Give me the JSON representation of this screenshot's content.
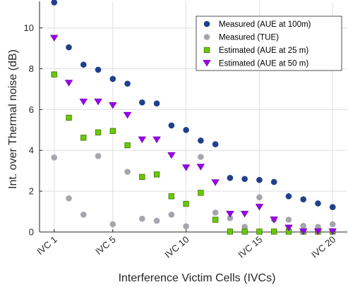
{
  "chart_data": {
    "type": "scatter",
    "xlabel": "Interference Victim Cells (IVCs)",
    "ylabel": "Int. over Thermal noise (dB)",
    "xlim": [
      0,
      21
    ],
    "ylim": [
      0,
      11.3
    ],
    "grid": true,
    "legend_position": "top-right",
    "x_ticks": [
      {
        "x": 1,
        "label": "IVC 1"
      },
      {
        "x": 5,
        "label": "IVC 5"
      },
      {
        "x": 10,
        "label": "IVC 10"
      },
      {
        "x": 15,
        "label": "IVC 15"
      },
      {
        "x": 20,
        "label": "IVC 20"
      }
    ],
    "y_ticks": [
      0,
      2,
      4,
      6,
      8,
      10
    ],
    "series": [
      {
        "name": "Measured (AUE at 100m)",
        "marker": "circle",
        "color": "#1f3f8f",
        "x": [
          1,
          2,
          3,
          4,
          5,
          6,
          7,
          8,
          9,
          10,
          11,
          12,
          13,
          14,
          15,
          16,
          17,
          18,
          19,
          20
        ],
        "y": [
          11.25,
          9.05,
          8.2,
          7.95,
          7.5,
          7.27,
          6.35,
          6.3,
          5.22,
          5.0,
          4.48,
          4.3,
          2.65,
          2.6,
          2.55,
          2.45,
          1.75,
          1.6,
          1.4,
          1.22
        ]
      },
      {
        "name": "Measured (TUE)",
        "marker": "circle",
        "color": "#a3a6ad",
        "x": [
          1,
          2,
          3,
          4,
          5,
          6,
          7,
          8,
          9,
          10,
          11,
          12,
          13,
          14,
          15,
          16,
          17,
          18,
          19,
          20
        ],
        "y": [
          3.65,
          1.65,
          0.85,
          3.72,
          0.38,
          2.95,
          0.65,
          0.55,
          0.85,
          0.28,
          3.68,
          0.95,
          0.68,
          0.25,
          1.7,
          0.6,
          0.6,
          0.3,
          0.25,
          0.38
        ]
      },
      {
        "name": "Estimated (AUE at 25 m)",
        "marker": "square",
        "color": "#66cc00",
        "x": [
          1,
          2,
          3,
          4,
          5,
          6,
          7,
          8,
          9,
          10,
          11,
          12,
          13,
          14,
          15,
          16,
          17,
          18,
          19,
          20
        ],
        "y": [
          7.72,
          5.6,
          4.62,
          4.88,
          4.95,
          4.25,
          2.7,
          2.82,
          1.75,
          1.38,
          1.92,
          0.6,
          0.02,
          0.02,
          0.02,
          0.02,
          0.02,
          0.02,
          0.02,
          0.02
        ]
      },
      {
        "name": "Estimated (AUE at 50 m)",
        "marker": "triangle-down",
        "color": "#9900ee",
        "x": [
          1,
          2,
          3,
          4,
          5,
          6,
          7,
          8,
          9,
          10,
          11,
          12,
          13,
          14,
          15,
          16,
          17,
          18,
          19,
          20
        ],
        "y": [
          9.5,
          7.3,
          6.38,
          6.38,
          6.2,
          5.72,
          4.52,
          4.52,
          3.75,
          3.15,
          3.18,
          2.42,
          0.88,
          0.88,
          1.22,
          0.6,
          0.2,
          0.02,
          0.02,
          0.02
        ]
      }
    ]
  }
}
